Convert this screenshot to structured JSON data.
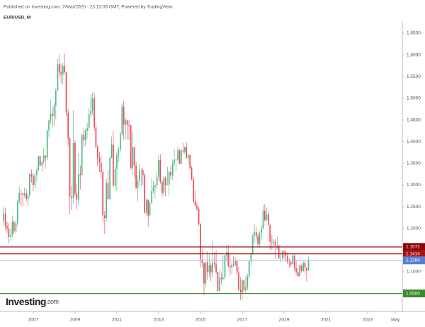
{
  "chart_data": {
    "type": "candlestick",
    "subtitle": "Published on Investing.com, 7/Mar/2020 - 23:13:05 GMT, Powered by TradingView.",
    "title": "EUR/USD, M",
    "logo": "Investing",
    "logo_suffix": ".com",
    "up_color": "#53b987",
    "down_color": "#eb4d5c",
    "grid": false,
    "xlim": [
      2005.41,
      2024.66
    ],
    "ylim": [
      1.0216,
      1.6908
    ],
    "xticks": [
      2007,
      2009,
      2011,
      2013,
      2015,
      2017,
      2019,
      2021,
      2023,
      {
        "value": 2024.33,
        "label": "May"
      }
    ],
    "yticks": [
      {
        "value": 1.1,
        "label": "1.1000"
      },
      {
        "value": 1.15,
        "label": "1.1500"
      },
      {
        "value": 1.2,
        "label": "1.2000"
      },
      {
        "value": 1.25,
        "label": "1.2500"
      },
      {
        "value": 1.3,
        "label": "1.3000"
      },
      {
        "value": 1.35,
        "label": "1.3500"
      },
      {
        "value": 1.4,
        "label": "1.4000"
      },
      {
        "value": 1.45,
        "label": "1.4500"
      },
      {
        "value": 1.5,
        "label": "1.5000"
      },
      {
        "value": 1.55,
        "label": "1.5500"
      },
      {
        "value": 1.6,
        "label": "1.6000"
      },
      {
        "value": 1.65,
        "label": "1.6500"
      }
    ],
    "levels": [
      {
        "value": 1.1572,
        "color": "#8b0000"
      },
      {
        "value": 1.1414,
        "color": "#a31515"
      },
      {
        "value": 1.1264,
        "color": "#5b7fd6",
        "line_color": "#aebde8"
      },
      {
        "value": {
          "value": 1.05,
          "label": "1.0500"
        },
        "color": "#3d8a2d"
      }
    ],
    "x": [
      2005.58,
      2005.67,
      2005.75,
      2005.83,
      2005.92,
      2006.0,
      2006.08,
      2006.17,
      2006.25,
      2006.33,
      2006.42,
      2006.5,
      2006.58,
      2006.67,
      2006.75,
      2006.83,
      2006.92,
      2007.0,
      2007.08,
      2007.17,
      2007.25,
      2007.33,
      2007.42,
      2007.5,
      2007.58,
      2007.67,
      2007.75,
      2007.83,
      2007.92,
      2008.0,
      2008.08,
      2008.17,
      2008.25,
      2008.33,
      2008.42,
      2008.5,
      2008.58,
      2008.67,
      2008.75,
      2008.83,
      2008.92,
      2009.0,
      2009.08,
      2009.17,
      2009.25,
      2009.33,
      2009.42,
      2009.5,
      2009.58,
      2009.67,
      2009.75,
      2009.83,
      2009.92,
      2010.0,
      2010.08,
      2010.17,
      2010.25,
      2010.33,
      2010.42,
      2010.5,
      2010.58,
      2010.67,
      2010.75,
      2010.83,
      2010.92,
      2011.0,
      2011.08,
      2011.17,
      2011.25,
      2011.33,
      2011.42,
      2011.5,
      2011.58,
      2011.67,
      2011.75,
      2011.83,
      2011.92,
      2012.0,
      2012.08,
      2012.17,
      2012.25,
      2012.33,
      2012.42,
      2012.5,
      2012.58,
      2012.67,
      2012.75,
      2012.83,
      2012.92,
      2013.0,
      2013.08,
      2013.17,
      2013.25,
      2013.33,
      2013.42,
      2013.5,
      2013.58,
      2013.67,
      2013.75,
      2013.83,
      2013.92,
      2014.0,
      2014.08,
      2014.17,
      2014.25,
      2014.33,
      2014.42,
      2014.5,
      2014.58,
      2014.67,
      2014.75,
      2014.83,
      2014.92,
      2015.0,
      2015.08,
      2015.17,
      2015.25,
      2015.33,
      2015.42,
      2015.5,
      2015.58,
      2015.67,
      2015.75,
      2015.83,
      2015.92,
      2016.0,
      2016.08,
      2016.17,
      2016.25,
      2016.33,
      2016.42,
      2016.5,
      2016.58,
      2016.67,
      2016.75,
      2016.83,
      2016.92,
      2017.0,
      2017.08,
      2017.17,
      2017.25,
      2017.33,
      2017.42,
      2017.5,
      2017.58,
      2017.67,
      2017.75,
      2017.83,
      2017.92,
      2018.0,
      2018.08,
      2018.17,
      2018.25,
      2018.33,
      2018.42,
      2018.5,
      2018.58,
      2018.67,
      2018.75,
      2018.83,
      2018.92,
      2019.0,
      2019.08,
      2019.17,
      2019.25,
      2019.33,
      2019.42,
      2019.5,
      2019.58,
      2019.67,
      2019.75,
      2019.83,
      2019.92,
      2020.0,
      2020.08,
      2020.17
    ],
    "open": [
      1.218,
      1.234,
      1.205,
      1.2,
      1.18,
      1.184,
      1.215,
      1.193,
      1.212,
      1.262,
      1.281,
      1.279,
      1.277,
      1.281,
      1.268,
      1.276,
      1.325,
      1.32,
      1.3,
      1.323,
      1.335,
      1.366,
      1.345,
      1.354,
      1.368,
      1.363,
      1.426,
      1.449,
      1.464,
      1.459,
      1.484,
      1.518,
      1.579,
      1.56,
      1.555,
      1.575,
      1.56,
      1.467,
      1.408,
      1.273,
      1.27,
      1.397,
      1.28,
      1.266,
      1.325,
      1.323,
      1.416,
      1.403,
      1.425,
      1.432,
      1.464,
      1.471,
      1.5,
      1.433,
      1.387,
      1.363,
      1.351,
      1.33,
      1.23,
      1.224,
      1.305,
      1.268,
      1.363,
      1.393,
      1.299,
      1.337,
      1.369,
      1.382,
      1.417,
      1.481,
      1.439,
      1.45,
      1.439,
      1.437,
      1.339,
      1.387,
      1.345,
      1.294,
      1.309,
      1.333,
      1.334,
      1.323,
      1.236,
      1.266,
      1.23,
      1.258,
      1.286,
      1.296,
      1.299,
      1.319,
      1.358,
      1.307,
      1.282,
      1.317,
      1.3,
      1.301,
      1.33,
      1.322,
      1.352,
      1.358,
      1.359,
      1.38,
      1.349,
      1.38,
      1.377,
      1.387,
      1.363,
      1.369,
      1.339,
      1.313,
      1.263,
      1.253,
      1.245,
      1.21,
      1.129,
      1.12,
      1.073,
      1.122,
      1.099,
      1.115,
      1.098,
      1.121,
      1.117,
      1.1,
      1.056,
      1.086,
      1.083,
      1.087,
      1.138,
      1.145,
      1.113,
      1.11,
      1.117,
      1.116,
      1.124,
      1.098,
      1.059,
      1.052,
      1.08,
      1.057,
      1.065,
      1.089,
      1.124,
      1.142,
      1.184,
      1.191,
      1.181,
      1.164,
      1.19,
      1.2,
      1.241,
      1.219,
      1.232,
      1.208,
      1.169,
      1.168,
      1.169,
      1.16,
      1.16,
      1.131,
      1.132,
      1.147,
      1.145,
      1.137,
      1.122,
      1.121,
      1.117,
      1.137,
      1.108,
      1.099,
      1.09,
      1.115,
      1.102,
      1.121,
      1.109,
      1.103
    ],
    "high": [
      1.25,
      1.247,
      1.215,
      1.213,
      1.2,
      1.229,
      1.218,
      1.22,
      1.265,
      1.297,
      1.29,
      1.283,
      1.294,
      1.29,
      1.281,
      1.328,
      1.336,
      1.328,
      1.326,
      1.34,
      1.368,
      1.368,
      1.355,
      1.385,
      1.369,
      1.428,
      1.45,
      1.497,
      1.477,
      1.49,
      1.523,
      1.591,
      1.602,
      1.58,
      1.582,
      1.604,
      1.561,
      1.476,
      1.41,
      1.299,
      1.472,
      1.404,
      1.302,
      1.374,
      1.345,
      1.419,
      1.431,
      1.43,
      1.444,
      1.478,
      1.509,
      1.514,
      1.512,
      1.446,
      1.392,
      1.376,
      1.368,
      1.336,
      1.24,
      1.314,
      1.334,
      1.366,
      1.412,
      1.425,
      1.344,
      1.376,
      1.388,
      1.423,
      1.487,
      1.494,
      1.455,
      1.449,
      1.449,
      1.44,
      1.424,
      1.387,
      1.355,
      1.323,
      1.349,
      1.339,
      1.338,
      1.328,
      1.269,
      1.267,
      1.264,
      1.317,
      1.309,
      1.304,
      1.331,
      1.37,
      1.371,
      1.312,
      1.322,
      1.321,
      1.342,
      1.334,
      1.345,
      1.359,
      1.383,
      1.362,
      1.389,
      1.383,
      1.383,
      1.397,
      1.389,
      1.399,
      1.372,
      1.37,
      1.344,
      1.319,
      1.287,
      1.26,
      1.25,
      1.212,
      1.153,
      1.122,
      1.122,
      1.147,
      1.139,
      1.121,
      1.171,
      1.146,
      1.15,
      1.1,
      1.106,
      1.099,
      1.138,
      1.139,
      1.162,
      1.162,
      1.143,
      1.123,
      1.135,
      1.133,
      1.126,
      1.112,
      1.087,
      1.083,
      1.083,
      1.091,
      1.095,
      1.127,
      1.145,
      1.186,
      1.21,
      1.203,
      1.188,
      1.194,
      1.208,
      1.254,
      1.256,
      1.248,
      1.24,
      1.21,
      1.185,
      1.175,
      1.175,
      1.182,
      1.162,
      1.15,
      1.148,
      1.151,
      1.149,
      1.145,
      1.131,
      1.127,
      1.141,
      1.141,
      1.125,
      1.108,
      1.118,
      1.115,
      1.124,
      1.124,
      1.11,
      1.135
    ],
    "low": [
      1.208,
      1.195,
      1.19,
      1.165,
      1.17,
      1.18,
      1.187,
      1.189,
      1.205,
      1.256,
      1.251,
      1.252,
      1.271,
      1.262,
      1.252,
      1.272,
      1.306,
      1.286,
      1.292,
      1.308,
      1.333,
      1.343,
      1.331,
      1.349,
      1.337,
      1.357,
      1.411,
      1.441,
      1.433,
      1.437,
      1.452,
      1.516,
      1.55,
      1.535,
      1.532,
      1.556,
      1.458,
      1.39,
      1.233,
      1.243,
      1.257,
      1.274,
      1.243,
      1.253,
      1.29,
      1.322,
      1.386,
      1.39,
      1.406,
      1.424,
      1.455,
      1.461,
      1.425,
      1.385,
      1.343,
      1.33,
      1.315,
      1.216,
      1.187,
      1.216,
      1.264,
      1.265,
      1.362,
      1.295,
      1.29,
      1.286,
      1.353,
      1.376,
      1.414,
      1.404,
      1.406,
      1.404,
      1.404,
      1.336,
      1.323,
      1.316,
      1.291,
      1.262,
      1.299,
      1.298,
      1.3,
      1.233,
      1.229,
      1.204,
      1.226,
      1.256,
      1.28,
      1.269,
      1.291,
      1.311,
      1.303,
      1.274,
      1.275,
      1.274,
      1.299,
      1.275,
      1.314,
      1.311,
      1.343,
      1.33,
      1.355,
      1.347,
      1.348,
      1.372,
      1.371,
      1.36,
      1.35,
      1.337,
      1.31,
      1.258,
      1.251,
      1.24,
      1.206,
      1.11,
      1.11,
      1.046,
      1.066,
      1.082,
      1.087,
      1.079,
      1.087,
      1.109,
      1.095,
      1.053,
      1.052,
      1.071,
      1.081,
      1.082,
      1.124,
      1.11,
      1.091,
      1.095,
      1.111,
      1.112,
      1.093,
      1.055,
      1.035,
      1.034,
      1.049,
      1.052,
      1.058,
      1.086,
      1.112,
      1.14,
      1.166,
      1.172,
      1.157,
      1.155,
      1.172,
      1.197,
      1.215,
      1.217,
      1.207,
      1.151,
      1.151,
      1.157,
      1.13,
      1.15,
      1.13,
      1.122,
      1.127,
      1.129,
      1.123,
      1.117,
      1.11,
      1.111,
      1.118,
      1.103,
      1.093,
      1.088,
      1.088,
      1.098,
      1.1,
      1.097,
      1.078,
      1.102
    ],
    "close": [
      1.234,
      1.205,
      1.2,
      1.18,
      1.184,
      1.215,
      1.193,
      1.212,
      1.262,
      1.281,
      1.279,
      1.277,
      1.281,
      1.268,
      1.276,
      1.325,
      1.32,
      1.3,
      1.323,
      1.335,
      1.366,
      1.345,
      1.354,
      1.368,
      1.363,
      1.426,
      1.449,
      1.464,
      1.459,
      1.484,
      1.518,
      1.579,
      1.56,
      1.555,
      1.575,
      1.56,
      1.467,
      1.408,
      1.273,
      1.27,
      1.397,
      1.28,
      1.266,
      1.325,
      1.323,
      1.416,
      1.403,
      1.425,
      1.432,
      1.464,
      1.471,
      1.5,
      1.433,
      1.387,
      1.363,
      1.351,
      1.33,
      1.23,
      1.224,
      1.305,
      1.268,
      1.363,
      1.393,
      1.299,
      1.337,
      1.369,
      1.382,
      1.417,
      1.481,
      1.439,
      1.45,
      1.439,
      1.437,
      1.339,
      1.387,
      1.345,
      1.294,
      1.309,
      1.333,
      1.334,
      1.323,
      1.236,
      1.266,
      1.23,
      1.258,
      1.286,
      1.296,
      1.299,
      1.319,
      1.358,
      1.307,
      1.282,
      1.317,
      1.3,
      1.301,
      1.33,
      1.322,
      1.352,
      1.358,
      1.359,
      1.38,
      1.349,
      1.38,
      1.377,
      1.387,
      1.363,
      1.369,
      1.339,
      1.313,
      1.263,
      1.253,
      1.245,
      1.21,
      1.129,
      1.12,
      1.073,
      1.122,
      1.099,
      1.115,
      1.098,
      1.121,
      1.117,
      1.1,
      1.056,
      1.086,
      1.083,
      1.087,
      1.138,
      1.145,
      1.113,
      1.11,
      1.117,
      1.116,
      1.124,
      1.098,
      1.059,
      1.052,
      1.08,
      1.057,
      1.065,
      1.089,
      1.124,
      1.142,
      1.184,
      1.191,
      1.181,
      1.164,
      1.19,
      1.2,
      1.241,
      1.219,
      1.232,
      1.208,
      1.169,
      1.168,
      1.169,
      1.16,
      1.16,
      1.131,
      1.132,
      1.147,
      1.145,
      1.137,
      1.122,
      1.121,
      1.117,
      1.137,
      1.108,
      1.099,
      1.09,
      1.115,
      1.102,
      1.121,
      1.109,
      1.103,
      1.128
    ]
  }
}
